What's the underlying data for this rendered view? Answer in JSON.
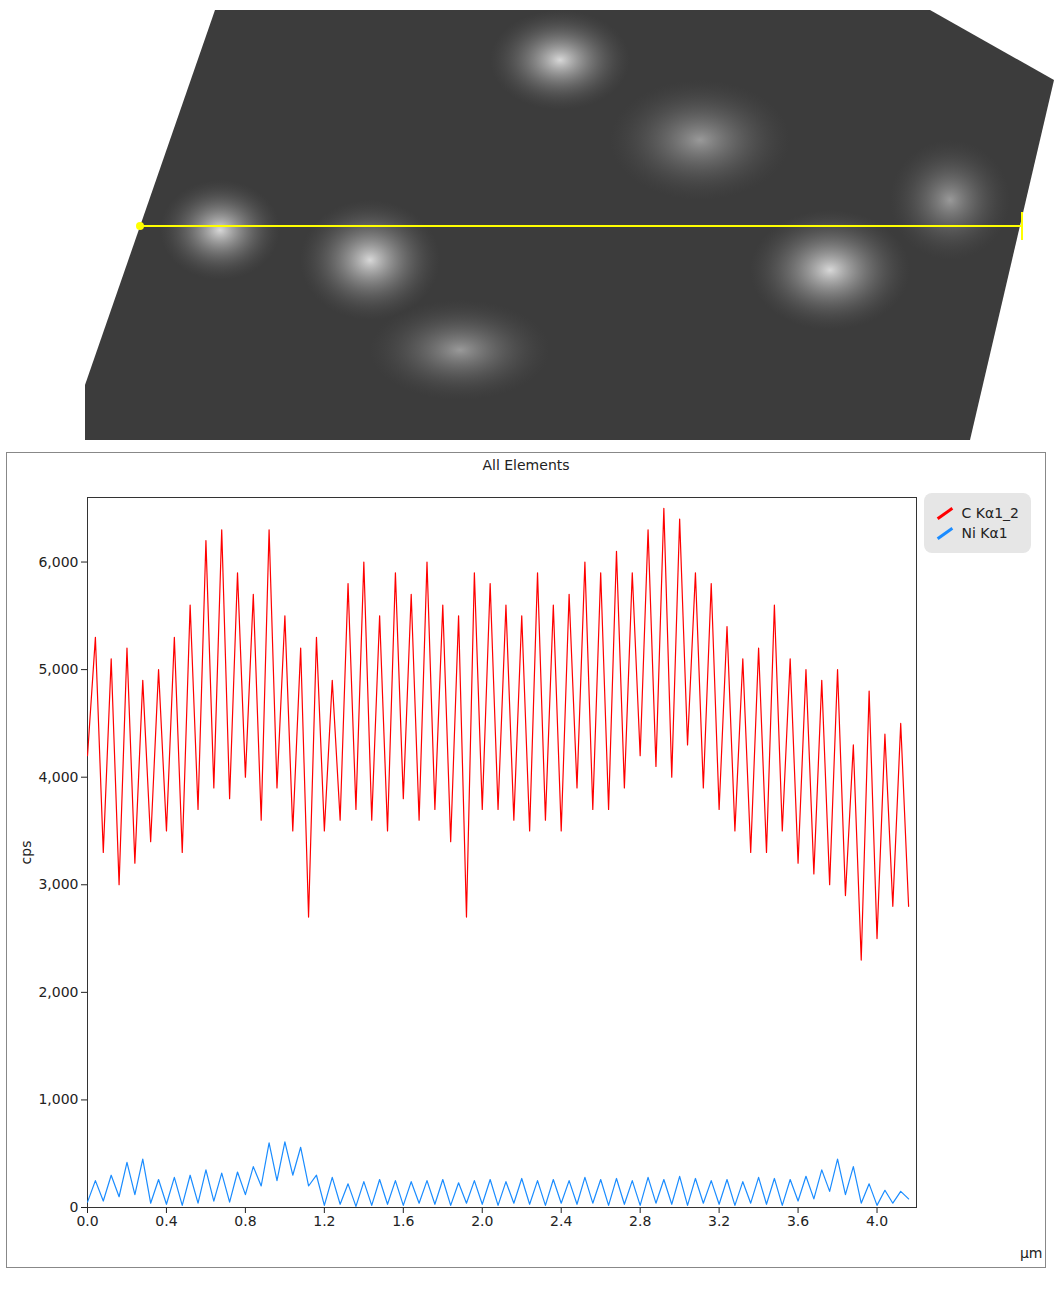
{
  "chart_data": {
    "type": "line",
    "title": "All Elements",
    "x_label": "µm",
    "y_label": "cps",
    "xlim": [
      0,
      4.2
    ],
    "ylim": [
      0,
      6600
    ],
    "xticks": [
      0,
      0.4,
      0.8,
      1.2,
      1.6,
      2,
      2.4,
      2.8,
      3.2,
      3.6,
      4
    ],
    "yticks": [
      0,
      1000,
      2000,
      3000,
      4000,
      5000,
      6000
    ],
    "grid": false,
    "legend": "right",
    "x": [
      0,
      0.04,
      0.08,
      0.12,
      0.16,
      0.2,
      0.24,
      0.28,
      0.32,
      0.36,
      0.4,
      0.44,
      0.48,
      0.52,
      0.56,
      0.6,
      0.64,
      0.68,
      0.72,
      0.76,
      0.8,
      0.84,
      0.88,
      0.92,
      0.96,
      1,
      1.04,
      1.08,
      1.12,
      1.16,
      1.2,
      1.24,
      1.28,
      1.32,
      1.36,
      1.4,
      1.44,
      1.48,
      1.52,
      1.56,
      1.6,
      1.64,
      1.68,
      1.72,
      1.76,
      1.8,
      1.84,
      1.88,
      1.92,
      1.96,
      2,
      2.04,
      2.08,
      2.12,
      2.16,
      2.2,
      2.24,
      2.28,
      2.32,
      2.36,
      2.4,
      2.44,
      2.48,
      2.52,
      2.56,
      2.6,
      2.64,
      2.68,
      2.72,
      2.76,
      2.8,
      2.84,
      2.88,
      2.92,
      2.96,
      3,
      3.04,
      3.08,
      3.12,
      3.16,
      3.2,
      3.24,
      3.28,
      3.32,
      3.36,
      3.4,
      3.44,
      3.48,
      3.52,
      3.56,
      3.6,
      3.64,
      3.68,
      3.72,
      3.76,
      3.8,
      3.84,
      3.88,
      3.92,
      3.96,
      4,
      4.04,
      4.08,
      4.12,
      4.16
    ],
    "series": [
      {
        "name": "C Kα1_2",
        "color": "#ff0000",
        "values": [
          4200,
          5300,
          3300,
          5100,
          3000,
          5200,
          3200,
          4900,
          3400,
          5000,
          3500,
          5300,
          3300,
          5600,
          3700,
          6200,
          3900,
          6300,
          3800,
          5900,
          4000,
          5700,
          3600,
          6300,
          3900,
          5500,
          3500,
          5200,
          2700,
          5300,
          3500,
          4900,
          3600,
          5800,
          3700,
          6000,
          3600,
          5500,
          3500,
          5900,
          3800,
          5700,
          3600,
          6000,
          3700,
          5600,
          3400,
          5500,
          2700,
          5900,
          3700,
          5800,
          3700,
          5600,
          3600,
          5500,
          3500,
          5900,
          3600,
          5600,
          3500,
          5700,
          3900,
          6000,
          3700,
          5900,
          3700,
          6100,
          3900,
          5900,
          4200,
          6300,
          4100,
          6500,
          4000,
          6400,
          4300,
          5900,
          3900,
          5800,
          3700,
          5400,
          3500,
          5100,
          3300,
          5200,
          3300,
          5600,
          3500,
          5100,
          3200,
          5000,
          3100,
          4900,
          3000,
          5000,
          2900,
          4300,
          2300,
          4800,
          2500,
          4400,
          2800,
          4500,
          2800
        ]
      },
      {
        "name": "Ni Kα1",
        "color": "#1a8cff",
        "values": [
          50,
          250,
          60,
          300,
          100,
          420,
          120,
          450,
          40,
          260,
          30,
          280,
          20,
          300,
          40,
          350,
          60,
          320,
          50,
          330,
          120,
          380,
          200,
          600,
          250,
          610,
          300,
          560,
          200,
          300,
          20,
          280,
          30,
          220,
          10,
          240,
          20,
          260,
          30,
          250,
          20,
          240,
          40,
          250,
          30,
          260,
          20,
          230,
          40,
          250,
          30,
          260,
          20,
          240,
          40,
          270,
          30,
          250,
          20,
          260,
          40,
          250,
          30,
          280,
          40,
          260,
          20,
          270,
          30,
          250,
          20,
          280,
          40,
          260,
          30,
          290,
          20,
          270,
          40,
          250,
          30,
          260,
          20,
          240,
          40,
          280,
          30,
          270,
          20,
          260,
          60,
          290,
          80,
          350,
          150,
          450,
          120,
          380,
          40,
          220,
          20,
          160,
          40,
          150,
          80
        ]
      }
    ]
  }
}
